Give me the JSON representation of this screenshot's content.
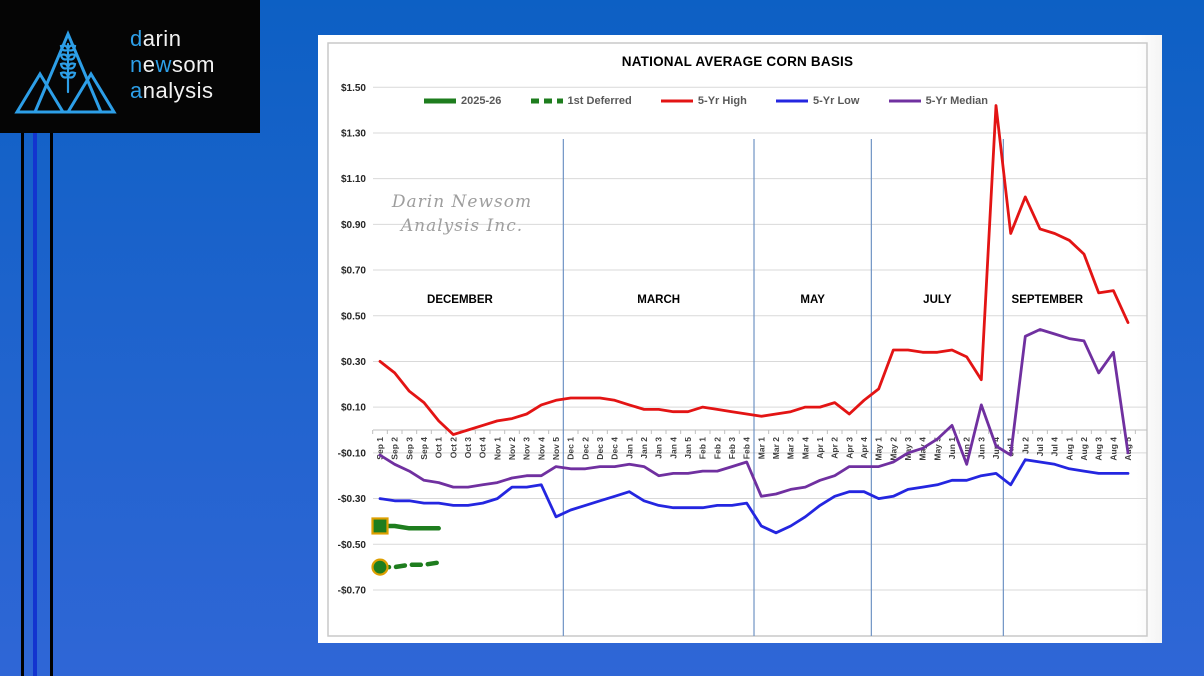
{
  "logo": {
    "d1": "d",
    "d2": "arin",
    "n1": "n",
    "n2": "e",
    "n3": "w",
    "n4": "som",
    "a1": "a",
    "a2": "nalysis",
    "accent_color": "#2d9fe8"
  },
  "watermark": {
    "line1": "Darin Newsom",
    "line2": "Analysis Inc."
  },
  "chart_data": {
    "type": "line",
    "title": "NATIONAL AVERAGE CORN BASIS",
    "ylabel": "",
    "xlabel": "",
    "ylim": [
      -0.7,
      1.5
    ],
    "y_tick_step": 0.2,
    "y_tick_labels": [
      "$1.50",
      "$1.30",
      "$1.10",
      "$0.90",
      "$0.70",
      "$0.50",
      "$0.30",
      "$0.10",
      "-$0.10",
      "-$0.30",
      "-$0.50",
      "-$0.70"
    ],
    "grid": "horizontal",
    "legend_position": "top",
    "categories": [
      "Sep 1",
      "Sep 2",
      "Sep 3",
      "Sep 4",
      "Oct 1",
      "Oct 2",
      "Oct 3",
      "Oct 4",
      "Nov 1",
      "Nov 2",
      "Nov 3",
      "Nov 4",
      "Nov 5",
      "Dec 1",
      "Dec 2",
      "Dec 3",
      "Dec 4",
      "Jan 1",
      "Jan 2",
      "Jan 3",
      "Jan 4",
      "Jan 5",
      "Feb 1",
      "Feb 2",
      "Feb 3",
      "Feb 4",
      "Mar 1",
      "Mar 2",
      "Mar 3",
      "Mar 4",
      "Apr 1",
      "Apr 2",
      "Apr 3",
      "Apr 4",
      "May 1",
      "May 2",
      "May 3",
      "May 4",
      "May 5",
      "Jun 1",
      "Jun 2",
      "Jun 3",
      "Jun 4",
      "Jul 1",
      "Ju 2",
      "Jul 3",
      "Jul 4",
      "Aug 1",
      "Aug 2",
      "Aug 3",
      "Aug 4",
      "Aug 5"
    ],
    "contract_dividers_after_index": [
      12,
      25,
      33,
      42
    ],
    "contract_labels": [
      {
        "label": "DECEMBER",
        "center_index": 5.45
      },
      {
        "label": "MARCH",
        "center_index": 19.0
      },
      {
        "label": "MAY",
        "center_index": 29.5
      },
      {
        "label": "JULY",
        "center_index": 38.0
      },
      {
        "label": "SEPTEMBER",
        "center_index": 45.5
      }
    ],
    "series": [
      {
        "name": "2025-26",
        "color": "#1e7d1e",
        "line_style": "solid",
        "width": 4.5,
        "marker": "square",
        "marker_outline": "#dd9f00",
        "values": [
          -0.42,
          -0.42,
          -0.43,
          -0.43,
          -0.43,
          null,
          null,
          null,
          null,
          null,
          null,
          null,
          null,
          null,
          null,
          null,
          null,
          null,
          null,
          null,
          null,
          null,
          null,
          null,
          null,
          null,
          null,
          null,
          null,
          null,
          null,
          null,
          null,
          null,
          null,
          null,
          null,
          null,
          null,
          null,
          null,
          null,
          null,
          null,
          null,
          null,
          null,
          null,
          null,
          null,
          null,
          null
        ]
      },
      {
        "name": "1st Deferred",
        "color": "#1e7d1e",
        "line_style": "dashed",
        "width": 4.5,
        "marker": "circle",
        "marker_outline": "#dd9f00",
        "values": [
          -0.6,
          -0.6,
          -0.59,
          -0.59,
          -0.58,
          null,
          null,
          null,
          null,
          null,
          null,
          null,
          null,
          null,
          null,
          null,
          null,
          null,
          null,
          null,
          null,
          null,
          null,
          null,
          null,
          null,
          null,
          null,
          null,
          null,
          null,
          null,
          null,
          null,
          null,
          null,
          null,
          null,
          null,
          null,
          null,
          null,
          null,
          null,
          null,
          null,
          null,
          null,
          null,
          null,
          null,
          null
        ]
      },
      {
        "name": "5-Yr High",
        "color": "#e31414",
        "line_style": "solid",
        "width": 2.8,
        "marker": "none",
        "values": [
          0.3,
          0.25,
          0.17,
          0.12,
          0.04,
          -0.02,
          0.0,
          0.02,
          0.04,
          0.05,
          0.07,
          0.11,
          0.13,
          0.14,
          0.14,
          0.14,
          0.13,
          0.11,
          0.09,
          0.09,
          0.08,
          0.08,
          0.1,
          0.09,
          0.08,
          0.07,
          0.06,
          0.07,
          0.08,
          0.1,
          0.1,
          0.12,
          0.07,
          0.13,
          0.18,
          0.35,
          0.35,
          0.34,
          0.34,
          0.35,
          0.32,
          0.22,
          1.42,
          0.86,
          1.02,
          0.88,
          0.86,
          0.83,
          0.77,
          0.6,
          0.61,
          0.47
        ]
      },
      {
        "name": "5-Yr Low",
        "color": "#2426e0",
        "line_style": "solid",
        "width": 2.8,
        "marker": "none",
        "values": [
          -0.3,
          -0.31,
          -0.31,
          -0.32,
          -0.32,
          -0.33,
          -0.33,
          -0.32,
          -0.3,
          -0.25,
          -0.25,
          -0.24,
          -0.38,
          -0.35,
          -0.33,
          -0.31,
          -0.29,
          -0.27,
          -0.31,
          -0.33,
          -0.34,
          -0.34,
          -0.34,
          -0.33,
          -0.33,
          -0.32,
          -0.42,
          -0.45,
          -0.42,
          -0.38,
          -0.33,
          -0.29,
          -0.27,
          -0.27,
          -0.3,
          -0.29,
          -0.26,
          -0.25,
          -0.24,
          -0.22,
          -0.22,
          -0.2,
          -0.19,
          -0.24,
          -0.13,
          -0.14,
          -0.15,
          -0.17,
          -0.18,
          -0.19,
          -0.19,
          -0.19
        ]
      },
      {
        "name": "5-Yr Median",
        "color": "#7030a0",
        "line_style": "solid",
        "width": 2.8,
        "marker": "none",
        "values": [
          -0.11,
          -0.15,
          -0.18,
          -0.22,
          -0.23,
          -0.25,
          -0.25,
          -0.24,
          -0.23,
          -0.21,
          -0.2,
          -0.2,
          -0.16,
          -0.17,
          -0.17,
          -0.16,
          -0.16,
          -0.15,
          -0.16,
          -0.2,
          -0.19,
          -0.19,
          -0.18,
          -0.18,
          -0.16,
          -0.14,
          -0.29,
          -0.28,
          -0.26,
          -0.25,
          -0.22,
          -0.2,
          -0.16,
          -0.16,
          -0.16,
          -0.14,
          -0.1,
          -0.08,
          -0.04,
          0.02,
          -0.15,
          0.11,
          -0.07,
          -0.11,
          0.41,
          0.44,
          0.42,
          0.4,
          0.39,
          0.25,
          0.34,
          -0.1
        ]
      }
    ],
    "colors": {
      "grid": "#d9d9d9",
      "frame": "#c9c9c9",
      "axis": "#bfbfbf",
      "divider": "#6f93c4",
      "month_label": "#000000",
      "tick_label": "#404040",
      "y_label": "#262626",
      "watermark": "#9e9e9e"
    }
  }
}
